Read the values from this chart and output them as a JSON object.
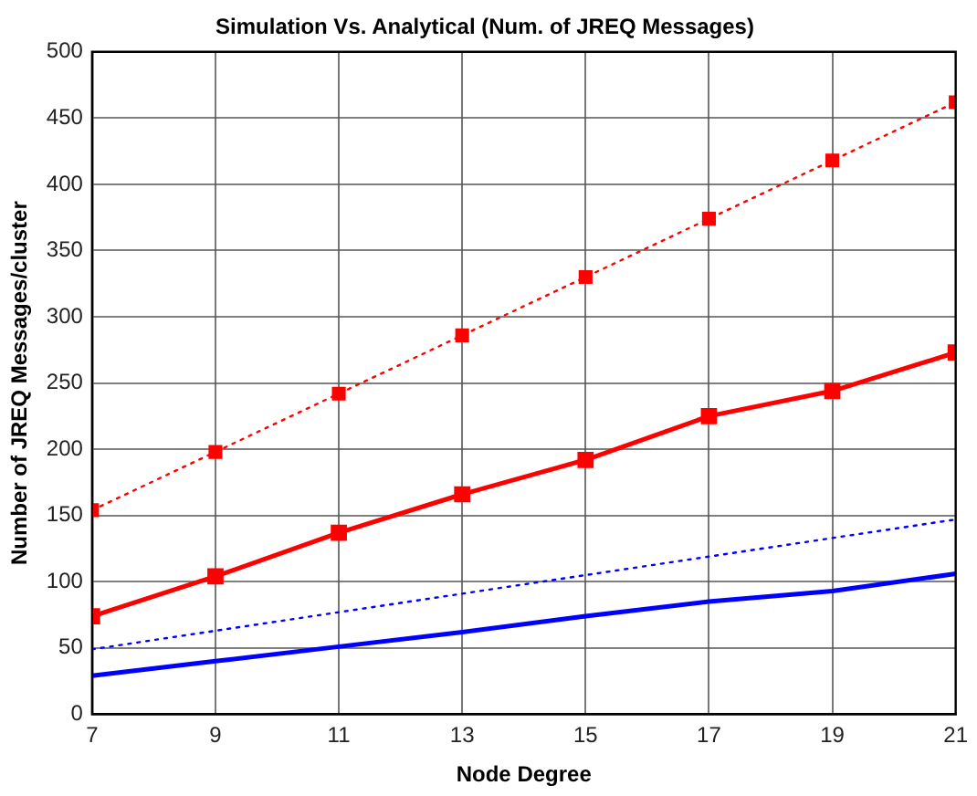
{
  "chart_data": {
    "type": "line",
    "title": "Simulation Vs. Analytical (Num. of JREQ Messages)",
    "xlabel": "Node Degree",
    "ylabel": "Number of JREQ Messages/cluster",
    "x": [
      7,
      9,
      11,
      13,
      15,
      17,
      19,
      21
    ],
    "series": [
      {
        "color": "#ff0000",
        "line_style": "dotted",
        "marker": "square",
        "values": [
          154,
          198,
          242,
          286,
          330,
          374,
          418,
          462
        ]
      },
      {
        "color": "#ff0000",
        "line_style": "solid",
        "marker": "square",
        "values": [
          74,
          104,
          137,
          166,
          192,
          225,
          244,
          273
        ]
      },
      {
        "color": "#0000ff",
        "line_style": "dotted",
        "marker": "none",
        "values": [
          49,
          63,
          77,
          91,
          105,
          119,
          133,
          147
        ]
      },
      {
        "color": "#0000ff",
        "line_style": "solid",
        "marker": "none",
        "values": [
          29,
          40,
          51,
          62,
          74,
          85,
          93,
          106
        ]
      }
    ],
    "xlim": [
      7,
      21
    ],
    "xticks": [
      7,
      9,
      11,
      13,
      15,
      17,
      19,
      21
    ],
    "ylim": [
      0,
      500
    ],
    "yticks": [
      0,
      50,
      100,
      150,
      200,
      250,
      300,
      350,
      400,
      450,
      500
    ],
    "grid": true,
    "legend": false
  }
}
